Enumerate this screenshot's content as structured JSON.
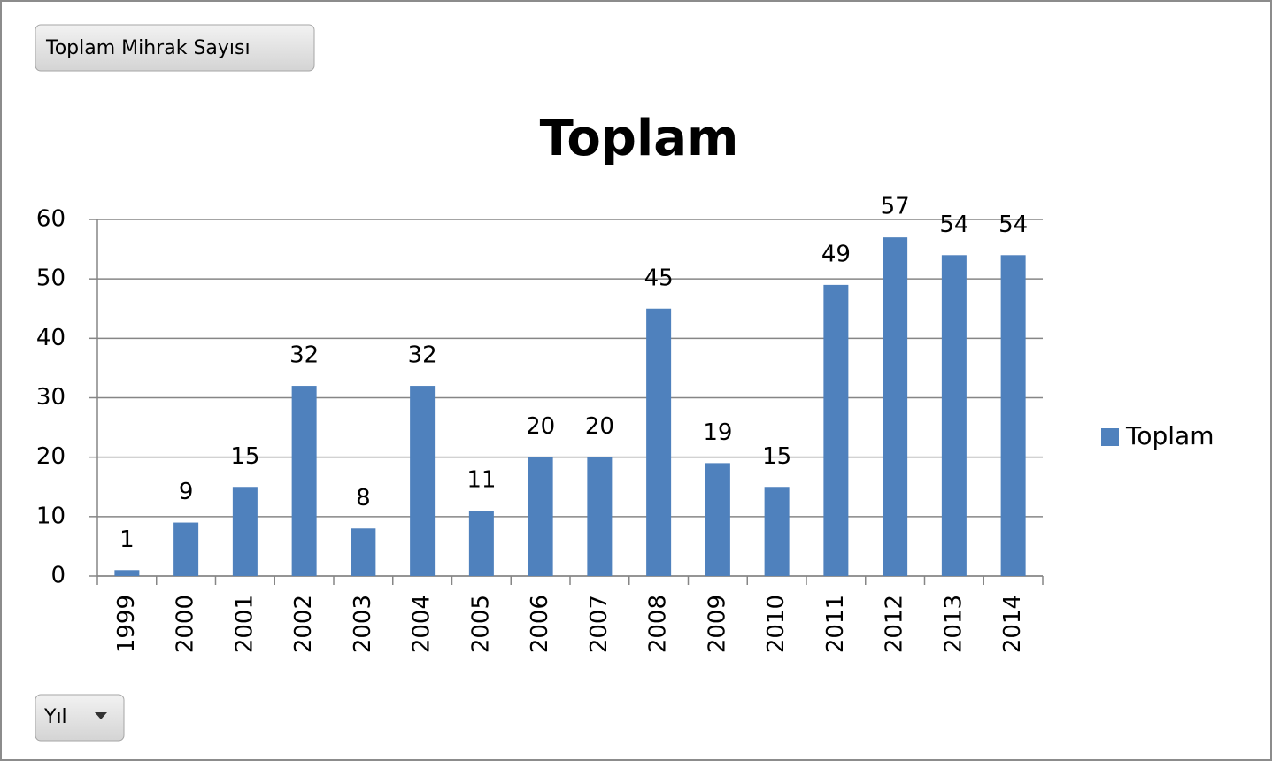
{
  "field_buttons": {
    "values": "Toplam Mihrak Sayısı",
    "axis": "Yıl"
  },
  "chart_data": {
    "type": "bar",
    "title": "Toplam",
    "categories": [
      "1999",
      "2000",
      "2001",
      "2002",
      "2003",
      "2004",
      "2005",
      "2006",
      "2007",
      "2008",
      "2009",
      "2010",
      "2011",
      "2012",
      "2013",
      "2014"
    ],
    "series": [
      {
        "name": "Toplam",
        "color": "#4f81bd",
        "values": [
          1,
          9,
          15,
          32,
          8,
          32,
          11,
          20,
          20,
          45,
          19,
          15,
          49,
          57,
          54,
          54
        ]
      }
    ],
    "ylim": [
      0,
      60
    ],
    "yticks": [
      0,
      10,
      20,
      30,
      40,
      50,
      60
    ],
    "grid": true,
    "legend": "right",
    "data_labels": true
  }
}
